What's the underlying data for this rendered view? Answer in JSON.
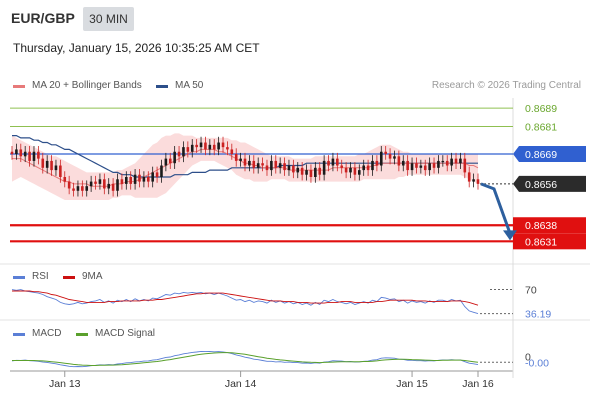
{
  "header": {
    "symbol": "EUR/GBP",
    "timeframe": "30 MIN",
    "timestamp": "Thursday, January 15, 2026 10:35:25 AM CET"
  },
  "legend": {
    "ma20_label": "MA 20 + Bollinger Bands",
    "ma50_label": "MA 50",
    "credit": "Research © 2026 Trading Central",
    "rsi_label": "RSI",
    "rsi_ma_label": "9MA",
    "macd_label": "MACD",
    "macd_signal_label": "MACD Signal"
  },
  "colors": {
    "ma20": "#e77a7a",
    "ma50": "#2d4f8a",
    "bollinger": "#f9d0d0",
    "up": "#1a1a1a",
    "down": "#cc2222",
    "resistance": "#8fc050",
    "support": "#e01010",
    "pivot": "#3060d0",
    "arrow": "#2d5f9e",
    "rsi": "#5b7fd6",
    "rsi_ma": "#cc1111",
    "macd": "#5b7fd6",
    "macd_signal": "#5aa02c"
  },
  "chart_data": [
    {
      "type": "candlestick",
      "x_ticks": [
        "Jan 13",
        "Jan 14",
        "Jan 15",
        "Jan 16"
      ],
      "ylim": [
        0.8622,
        0.8696
      ],
      "levels": [
        {
          "label": "0.8689",
          "value": 0.8689,
          "kind": "resistance"
        },
        {
          "label": "0.8681",
          "value": 0.8681,
          "kind": "resistance"
        },
        {
          "label": "0.8669",
          "value": 0.8669,
          "kind": "pivot"
        },
        {
          "label": "0.8656",
          "value": 0.8656,
          "kind": "last"
        },
        {
          "label": "0.8638",
          "value": 0.8638,
          "kind": "support"
        },
        {
          "label": "0.8631",
          "value": 0.8631,
          "kind": "support"
        }
      ],
      "forecast": {
        "from": 0.8656,
        "to": 0.8631
      },
      "close": [
        0.8669,
        0.8671,
        0.8668,
        0.867,
        0.8666,
        0.867,
        0.8667,
        0.8663,
        0.8666,
        0.8662,
        0.8664,
        0.8659,
        0.8657,
        0.8654,
        0.8653,
        0.8655,
        0.8653,
        0.8655,
        0.8657,
        0.8656,
        0.8658,
        0.8654,
        0.8656,
        0.8653,
        0.8658,
        0.8656,
        0.8659,
        0.8656,
        0.866,
        0.8657,
        0.8659,
        0.8657,
        0.8661,
        0.8659,
        0.8664,
        0.8667,
        0.8665,
        0.867,
        0.8668,
        0.8672,
        0.867,
        0.8673,
        0.8672,
        0.8674,
        0.8671,
        0.8673,
        0.8671,
        0.8674,
        0.8672,
        0.8671,
        0.8669,
        0.8666,
        0.8667,
        0.8664,
        0.8666,
        0.8663,
        0.8665,
        0.8664,
        0.8662,
        0.8666,
        0.8663,
        0.8665,
        0.8662,
        0.8664,
        0.8661,
        0.8663,
        0.866,
        0.8662,
        0.8659,
        0.8663,
        0.866,
        0.8666,
        0.8664,
        0.8667,
        0.8664,
        0.8663,
        0.8661,
        0.8663,
        0.866,
        0.8662,
        0.8664,
        0.8662,
        0.8666,
        0.8664,
        0.867,
        0.8669,
        0.8667,
        0.8668,
        0.8664,
        0.8666,
        0.8662,
        0.8665,
        0.8663,
        0.8664,
        0.8662,
        0.8665,
        0.8663,
        0.8666,
        0.8666,
        0.8664,
        0.8667,
        0.8665,
        0.8667,
        0.8661,
        0.8657,
        0.8658,
        0.8656
      ],
      "ma20": [
        0.8667,
        0.8667,
        0.8667,
        0.8666,
        0.8665,
        0.8664,
        0.8663,
        0.8662,
        0.8661,
        0.866,
        0.8659,
        0.8658,
        0.8657,
        0.8657,
        0.8656,
        0.8656,
        0.8656,
        0.8656,
        0.8655,
        0.8655,
        0.8655,
        0.8655,
        0.8655,
        0.8656,
        0.8656,
        0.8656,
        0.8657,
        0.8657,
        0.8657,
        0.8658,
        0.8659,
        0.866,
        0.8661,
        0.8662,
        0.8663,
        0.8664,
        0.8665,
        0.8666,
        0.8667,
        0.8668,
        0.8669,
        0.867,
        0.867,
        0.8671,
        0.8671,
        0.8671,
        0.8671,
        0.867,
        0.867,
        0.8669,
        0.8668,
        0.8667,
        0.8666,
        0.8665,
        0.8665,
        0.8664,
        0.8664,
        0.8663,
        0.8663,
        0.8663,
        0.8663,
        0.8663,
        0.8663,
        0.8662,
        0.8662,
        0.8662,
        0.8662,
        0.8662,
        0.8662,
        0.8662,
        0.8662,
        0.8662,
        0.8662,
        0.8663,
        0.8663,
        0.8663,
        0.8663,
        0.8663,
        0.8663,
        0.8663,
        0.8663,
        0.8663,
        0.8664,
        0.8664,
        0.8665,
        0.8665,
        0.8665,
        0.8665,
        0.8665,
        0.8665,
        0.8665,
        0.8665,
        0.8665,
        0.8665,
        0.8665,
        0.8665,
        0.8665,
        0.8665,
        0.8665,
        0.8665,
        0.8665,
        0.8665,
        0.8665,
        0.8665,
        0.8664,
        0.8664,
        0.8663
      ],
      "bb_upper": [
        0.8677,
        0.8676,
        0.8675,
        0.8674,
        0.8673,
        0.8672,
        0.8671,
        0.867,
        0.8669,
        0.8668,
        0.8668,
        0.8667,
        0.8666,
        0.8665,
        0.8664,
        0.8663,
        0.8662,
        0.8661,
        0.8661,
        0.8661,
        0.8661,
        0.8661,
        0.8661,
        0.8661,
        0.8662,
        0.8662,
        0.8663,
        0.8664,
        0.8665,
        0.8667,
        0.8669,
        0.8671,
        0.8673,
        0.8674,
        0.8676,
        0.8677,
        0.8677,
        0.8678,
        0.8678,
        0.8677,
        0.8677,
        0.8677,
        0.8676,
        0.8676,
        0.8676,
        0.8676,
        0.8676,
        0.8676,
        0.8676,
        0.8676,
        0.8675,
        0.8675,
        0.8674,
        0.8674,
        0.8673,
        0.8672,
        0.8671,
        0.867,
        0.8669,
        0.8668,
        0.8668,
        0.8668,
        0.8668,
        0.8668,
        0.8667,
        0.8667,
        0.8667,
        0.8667,
        0.8667,
        0.8668,
        0.8668,
        0.8668,
        0.8668,
        0.8668,
        0.8668,
        0.8668,
        0.8668,
        0.8668,
        0.8668,
        0.8669,
        0.8669,
        0.867,
        0.8671,
        0.8672,
        0.8673,
        0.8673,
        0.8673,
        0.8672,
        0.8671,
        0.867,
        0.867,
        0.8669,
        0.8669,
        0.8669,
        0.8669,
        0.8669,
        0.8669,
        0.8669,
        0.8669,
        0.8669,
        0.8669,
        0.8669,
        0.8669,
        0.8669,
        0.8669,
        0.8669,
        0.8669
      ],
      "bb_lower": [
        0.8657,
        0.8658,
        0.8659,
        0.8658,
        0.8657,
        0.8656,
        0.8655,
        0.8654,
        0.8653,
        0.8652,
        0.8651,
        0.865,
        0.8649,
        0.8649,
        0.8649,
        0.8649,
        0.8649,
        0.8649,
        0.8649,
        0.8649,
        0.8649,
        0.8649,
        0.8649,
        0.865,
        0.865,
        0.8651,
        0.8651,
        0.8651,
        0.865,
        0.865,
        0.865,
        0.865,
        0.865,
        0.865,
        0.8651,
        0.8652,
        0.8654,
        0.8656,
        0.8658,
        0.866,
        0.8662,
        0.8664,
        0.8665,
        0.8666,
        0.8666,
        0.8666,
        0.8666,
        0.8665,
        0.8664,
        0.8663,
        0.8662,
        0.866,
        0.8659,
        0.8658,
        0.8658,
        0.8657,
        0.8657,
        0.8657,
        0.8657,
        0.8658,
        0.8658,
        0.8658,
        0.8658,
        0.8657,
        0.8657,
        0.8657,
        0.8657,
        0.8657,
        0.8657,
        0.8657,
        0.8657,
        0.8657,
        0.8657,
        0.8657,
        0.8657,
        0.8657,
        0.8657,
        0.8657,
        0.8657,
        0.8657,
        0.8658,
        0.8658,
        0.8658,
        0.8658,
        0.8658,
        0.8658,
        0.8658,
        0.8658,
        0.8659,
        0.8659,
        0.866,
        0.866,
        0.866,
        0.866,
        0.866,
        0.866,
        0.866,
        0.866,
        0.866,
        0.866,
        0.866,
        0.866,
        0.866,
        0.8659,
        0.8658,
        0.8657,
        0.8656
      ],
      "ma50": [
        0.8677,
        0.8677,
        0.8676,
        0.8676,
        0.8676,
        0.8675,
        0.8675,
        0.8674,
        0.8674,
        0.8673,
        0.8673,
        0.8672,
        0.8671,
        0.8671,
        0.867,
        0.8669,
        0.8668,
        0.8667,
        0.8666,
        0.8665,
        0.8664,
        0.8663,
        0.8662,
        0.8661,
        0.8661,
        0.866,
        0.866,
        0.866,
        0.8659,
        0.8659,
        0.8659,
        0.8659,
        0.8659,
        0.8659,
        0.8659,
        0.8659,
        0.8659,
        0.866,
        0.866,
        0.866,
        0.866,
        0.8661,
        0.8661,
        0.8661,
        0.8661,
        0.8662,
        0.8662,
        0.8662,
        0.8662,
        0.8662,
        0.8663,
        0.8663,
        0.8663,
        0.8663,
        0.8663,
        0.8663,
        0.8663,
        0.8663,
        0.8663,
        0.8663,
        0.8663,
        0.8664,
        0.8664,
        0.8664,
        0.8664,
        0.8664,
        0.8664,
        0.8665,
        0.8665,
        0.8665,
        0.8665,
        0.8665,
        0.8665,
        0.8665,
        0.8665,
        0.8665,
        0.8665,
        0.8665,
        0.8665,
        0.8665,
        0.8665,
        0.8665,
        0.8665,
        0.8665,
        0.8665,
        0.8665,
        0.8665,
        0.8665,
        0.8665,
        0.8665,
        0.8665,
        0.8665,
        0.8665,
        0.8665,
        0.8665,
        0.8665,
        0.8665,
        0.8665,
        0.8665,
        0.8665,
        0.8665,
        0.8665,
        0.8665,
        0.8665,
        0.8665,
        0.8665,
        0.8665
      ]
    },
    {
      "type": "line",
      "name": "RSI",
      "levels": [
        {
          "label": "70",
          "value": 70
        },
        {
          "label": "36.19",
          "value": 36.19
        }
      ],
      "ylim": [
        30,
        75
      ],
      "series": [
        {
          "name": "RSI",
          "values": [
            70,
            69,
            70,
            68,
            67,
            66,
            65,
            63,
            60,
            58,
            56,
            52,
            50,
            49,
            50,
            52,
            50,
            51,
            53,
            54,
            56,
            52,
            54,
            51,
            55,
            53,
            56,
            53,
            57,
            54,
            56,
            54,
            58,
            57,
            60,
            63,
            62,
            65,
            64,
            66,
            65,
            66,
            65,
            66,
            64,
            65,
            63,
            65,
            63,
            61,
            58,
            55,
            56,
            53,
            55,
            52,
            54,
            53,
            51,
            55,
            52,
            54,
            51,
            53,
            50,
            52,
            49,
            51,
            48,
            52,
            49,
            55,
            53,
            56,
            53,
            52,
            50,
            52,
            49,
            51,
            53,
            51,
            55,
            53,
            59,
            58,
            56,
            57,
            53,
            55,
            51,
            54,
            52,
            53,
            51,
            54,
            52,
            55,
            55,
            53,
            56,
            54,
            55,
            46,
            40,
            38,
            36.19
          ]
        },
        {
          "name": "9MA",
          "values": [
            68,
            68,
            68,
            68,
            68,
            67,
            67,
            66,
            65,
            63,
            62,
            60,
            58,
            56,
            55,
            54,
            53,
            52,
            52,
            52,
            52,
            52,
            53,
            53,
            53,
            54,
            54,
            54,
            54,
            54,
            55,
            55,
            55,
            56,
            56,
            57,
            58,
            59,
            60,
            61,
            62,
            63,
            64,
            64,
            65,
            65,
            65,
            65,
            65,
            64,
            63,
            62,
            61,
            60,
            59,
            58,
            57,
            56,
            55,
            54,
            54,
            54,
            53,
            53,
            53,
            52,
            52,
            52,
            51,
            51,
            51,
            51,
            52,
            52,
            52,
            53,
            53,
            53,
            52,
            52,
            52,
            52,
            52,
            53,
            53,
            54,
            55,
            55,
            55,
            55,
            55,
            55,
            54,
            54,
            54,
            53,
            53,
            53,
            53,
            53,
            54,
            54,
            54,
            53,
            52,
            50,
            48
          ]
        }
      ]
    },
    {
      "type": "line",
      "name": "MACD",
      "levels": [
        {
          "label": "0",
          "value": 0
        },
        {
          "label": "-0.00",
          "value": -5e-05
        }
      ],
      "ylim": [
        -0.0004,
        0.001
      ],
      "series": [
        {
          "name": "MACD",
          "values": [
            2e-05,
            5e-05,
            4e-05,
            6e-05,
            3e-05,
            2e-05,
            0.0,
            -4e-05,
            -6e-05,
            -0.0001,
            -0.00013,
            -0.00018,
            -0.00022,
            -0.00026,
            -0.00028,
            -0.00027,
            -0.00028,
            -0.00026,
            -0.00023,
            -0.00021,
            -0.00018,
            -0.00019,
            -0.00017,
            -0.00018,
            -0.00014,
            -0.00012,
            -8e-05,
            -7e-05,
            -3e-05,
            -2e-05,
            1e-05,
            2e-05,
            6e-05,
            8e-05,
            0.00014,
            0.0002,
            0.00022,
            0.00029,
            0.00033,
            0.00039,
            0.00042,
            0.00046,
            0.00048,
            0.00051,
            0.0005,
            0.00051,
            0.00049,
            0.0005,
            0.00048,
            0.00045,
            0.0004,
            0.00033,
            0.00028,
            0.00021,
            0.00017,
            0.00011,
            8e-05,
            4e-05,
            0.0,
            0.0,
            -3e-05,
            -2e-05,
            -5e-05,
            -4e-05,
            -7e-05,
            -7e-05,
            -0.0001,
            -9e-05,
            -0.00011,
            -8e-05,
            -0.0001,
            -4e-05,
            -2e-05,
            3e-05,
            2e-05,
            1e-05,
            -2e-05,
            -1e-05,
            -4e-05,
            -3e-05,
            0.0,
            1e-05,
            6e-05,
            8e-05,
            0.00016,
            0.00018,
            0.00017,
            0.00016,
            0.00011,
            0.0001,
            5e-05,
            5e-05,
            3e-05,
            3e-05,
            1e-05,
            3e-05,
            2e-05,
            5e-05,
            7e-05,
            6e-05,
            8e-05,
            6e-05,
            7e-05,
            -2e-05,
            -0.0001,
            -0.00013,
            -0.00017
          ]
        },
        {
          "name": "MACD Signal",
          "values": [
            4e-05,
            4e-05,
            4e-05,
            4e-05,
            4e-05,
            4e-05,
            3e-05,
            2e-05,
            0.0,
            -2e-05,
            -4e-05,
            -7e-05,
            -0.0001,
            -0.00013,
            -0.00016,
            -0.00018,
            -0.0002,
            -0.00021,
            -0.00022,
            -0.00022,
            -0.00021,
            -0.00021,
            -0.0002,
            -0.0002,
            -0.00019,
            -0.00018,
            -0.00016,
            -0.00014,
            -0.00012,
            -0.0001,
            -8e-05,
            -6e-05,
            -3e-05,
            -1e-05,
            2e-05,
            6e-05,
            9e-05,
            0.00013,
            0.00017,
            0.00021,
            0.00025,
            0.00029,
            0.00033,
            0.00036,
            0.00039,
            0.00041,
            0.00043,
            0.00044,
            0.00045,
            0.00045,
            0.00044,
            0.00042,
            0.00039,
            0.00036,
            0.00032,
            0.00028,
            0.00024,
            0.0002,
            0.00016,
            0.00013,
            0.0001,
            7e-05,
            5e-05,
            3e-05,
            1e-05,
            -1e-05,
            -3e-05,
            -4e-05,
            -5e-05,
            -6e-05,
            -7e-05,
            -6e-05,
            -5e-05,
            -4e-05,
            -3e-05,
            -2e-05,
            -2e-05,
            -2e-05,
            -2e-05,
            -2e-05,
            -1e-05,
            -1e-05,
            0.0,
            2e-05,
            5e-05,
            7e-05,
            9e-05,
            0.0001,
            0.00011,
            0.00011,
            0.0001,
            9e-05,
            8e-05,
            7e-05,
            6e-05,
            5e-05,
            4e-05,
            4e-05,
            5e-05,
            5e-05,
            6e-05,
            6e-05,
            6e-05,
            4e-05,
            1e-05,
            -2e-05,
            -5e-05
          ]
        }
      ]
    }
  ]
}
